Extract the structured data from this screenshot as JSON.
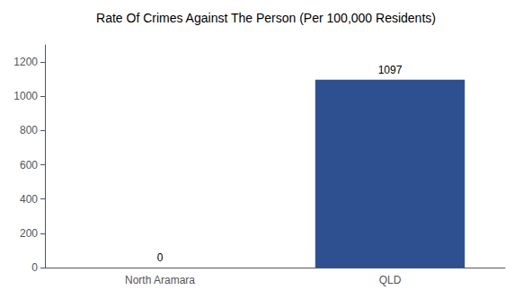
{
  "chart_data": {
    "type": "bar",
    "title": "Rate Of Crimes Against The Person (Per 100,000 Residents)",
    "categories": [
      "North Aramara",
      "QLD"
    ],
    "values": [
      0,
      1097
    ],
    "color": "#2e5090",
    "ylim": [
      0,
      1300
    ],
    "yticks": [
      0,
      200,
      400,
      600,
      800,
      1000,
      1200
    ],
    "grid": false,
    "data_labels": true
  }
}
